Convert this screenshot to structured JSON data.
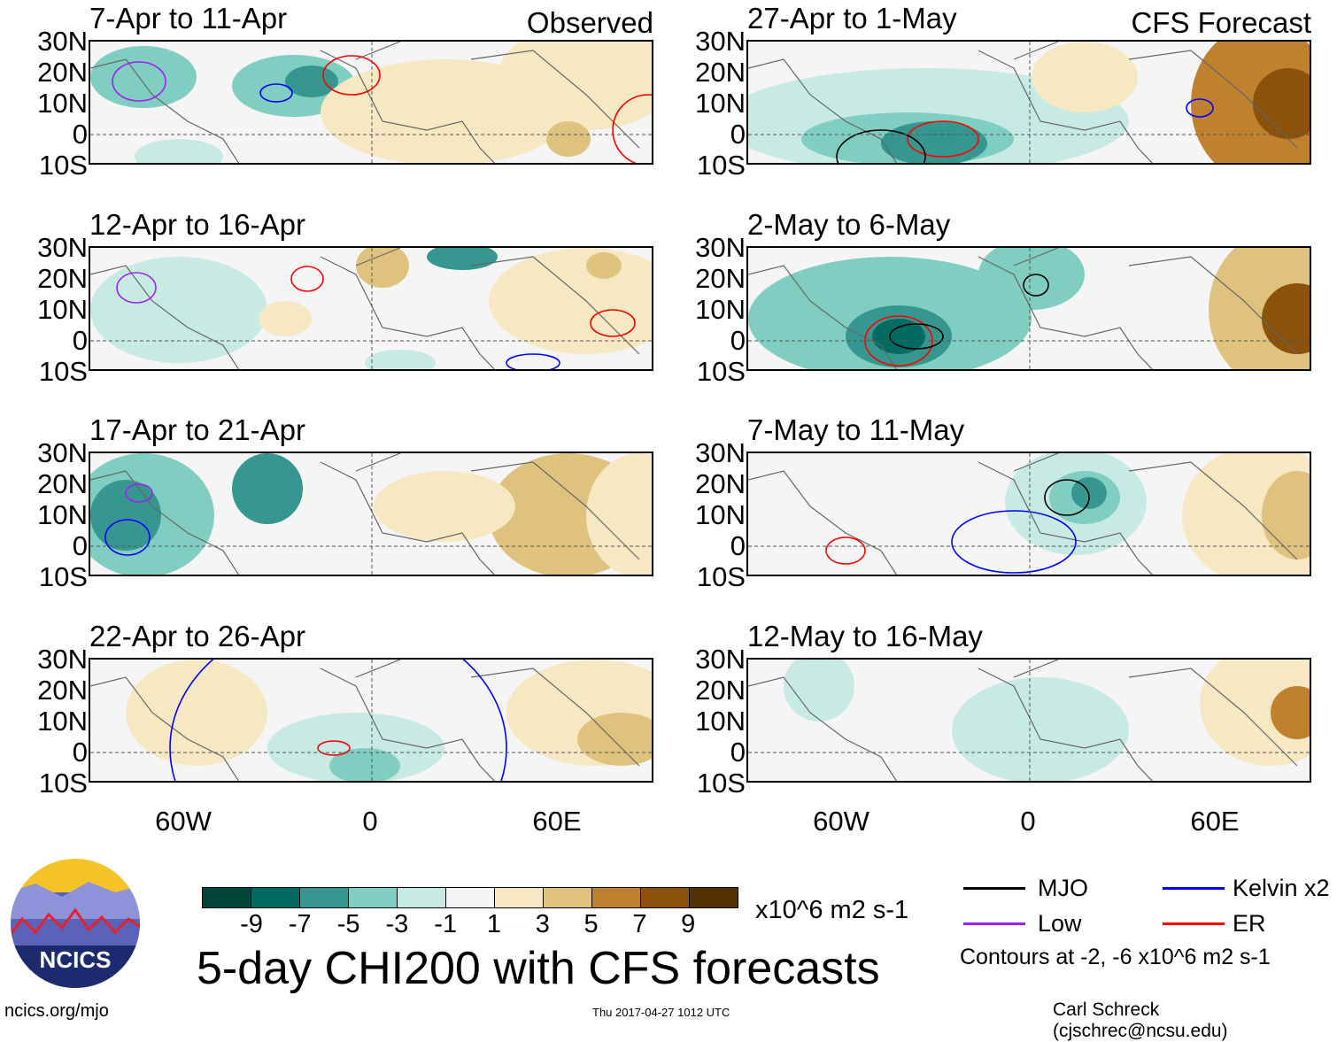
{
  "panels": [
    {
      "title": "7-Apr to 11-Apr",
      "label": "Observed"
    },
    {
      "title": "12-Apr to 16-Apr"
    },
    {
      "title": "17-Apr to 21-Apr"
    },
    {
      "title": "22-Apr to 26-Apr"
    },
    {
      "title": "27-Apr to 1-May",
      "label": "CFS Forecast"
    },
    {
      "title": "2-May to 6-May"
    },
    {
      "title": "7-May to 11-May"
    },
    {
      "title": "12-May to 16-May"
    }
  ],
  "lat_labels": [
    "30N",
    "20N",
    "10N",
    "0",
    "10S"
  ],
  "lon_labels": [
    "60W",
    "0",
    "60E"
  ],
  "colorbar": {
    "colors": [
      "#00463a",
      "#006b60",
      "#35978f",
      "#80cdc1",
      "#c7eae5",
      "#f5f5f5",
      "#f6e8c3",
      "#dfc27d",
      "#bf812d",
      "#8c510a",
      "#543005"
    ],
    "labels": [
      "-9",
      "-7",
      "-5",
      "-3",
      "-1",
      "1",
      "3",
      "5",
      "7",
      "9"
    ],
    "units": "x10^6 m2 s-1"
  },
  "title": "5-day CHI200 with CFS forecasts",
  "timestamp": "Thu 2017-04-27 1012 UTC",
  "legend": {
    "items": [
      {
        "label": "MJO",
        "color": "#000000"
      },
      {
        "label": "Kelvin x2",
        "color": "#0000ff"
      },
      {
        "label": "Low",
        "color": "#a020f0"
      },
      {
        "label": "ER",
        "color": "#ff0000"
      }
    ],
    "note": "Contours at -2, -6 x10^6 m2 s-1"
  },
  "logo_text": "NCICS",
  "url": "ncics.org/mjo",
  "credit": "Carl Schreck (cjschrec@ncsu.edu)"
}
